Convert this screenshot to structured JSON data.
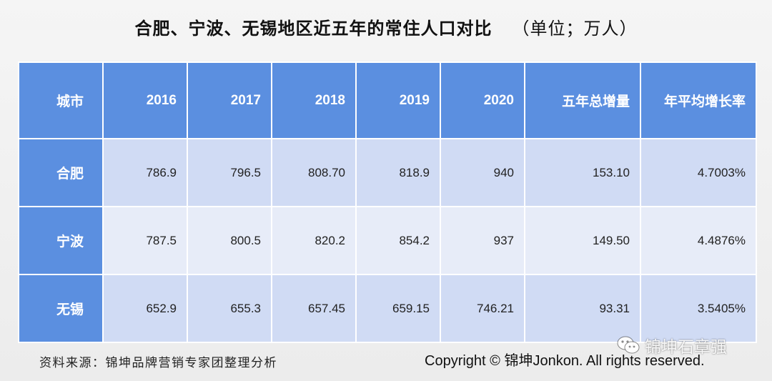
{
  "title": "合肥、宁波、无锡地区近五年的常住人口对比",
  "unit": "（单位；万人）",
  "table": {
    "headers": [
      "城市",
      "2016",
      "2017",
      "2018",
      "2019",
      "2020",
      "五年总增量",
      "年平均增长率"
    ],
    "rows": [
      {
        "city": "合肥",
        "values": [
          "786.9",
          "796.5",
          "808.70",
          "818.9",
          "940",
          "153.10",
          "4.7003%"
        ]
      },
      {
        "city": "宁波",
        "values": [
          "787.5",
          "800.5",
          "820.2",
          "854.2",
          "937",
          "149.50",
          "4.4876%"
        ]
      },
      {
        "city": "无锡",
        "values": [
          "652.9",
          "655.3",
          "657.45",
          "659.15",
          "746.21",
          "93.31",
          "3.5405%"
        ]
      }
    ]
  },
  "source": "资料来源：锦坤品牌营销专家团整理分析",
  "copyright": "Copyright © 锦坤Jonkon. All rights reserved.",
  "watermark": "锦坤石章强",
  "colors": {
    "header_bg": "#5b8fe0",
    "row_odd": "#d0dbf4",
    "row_even": "#e7ecf8"
  }
}
